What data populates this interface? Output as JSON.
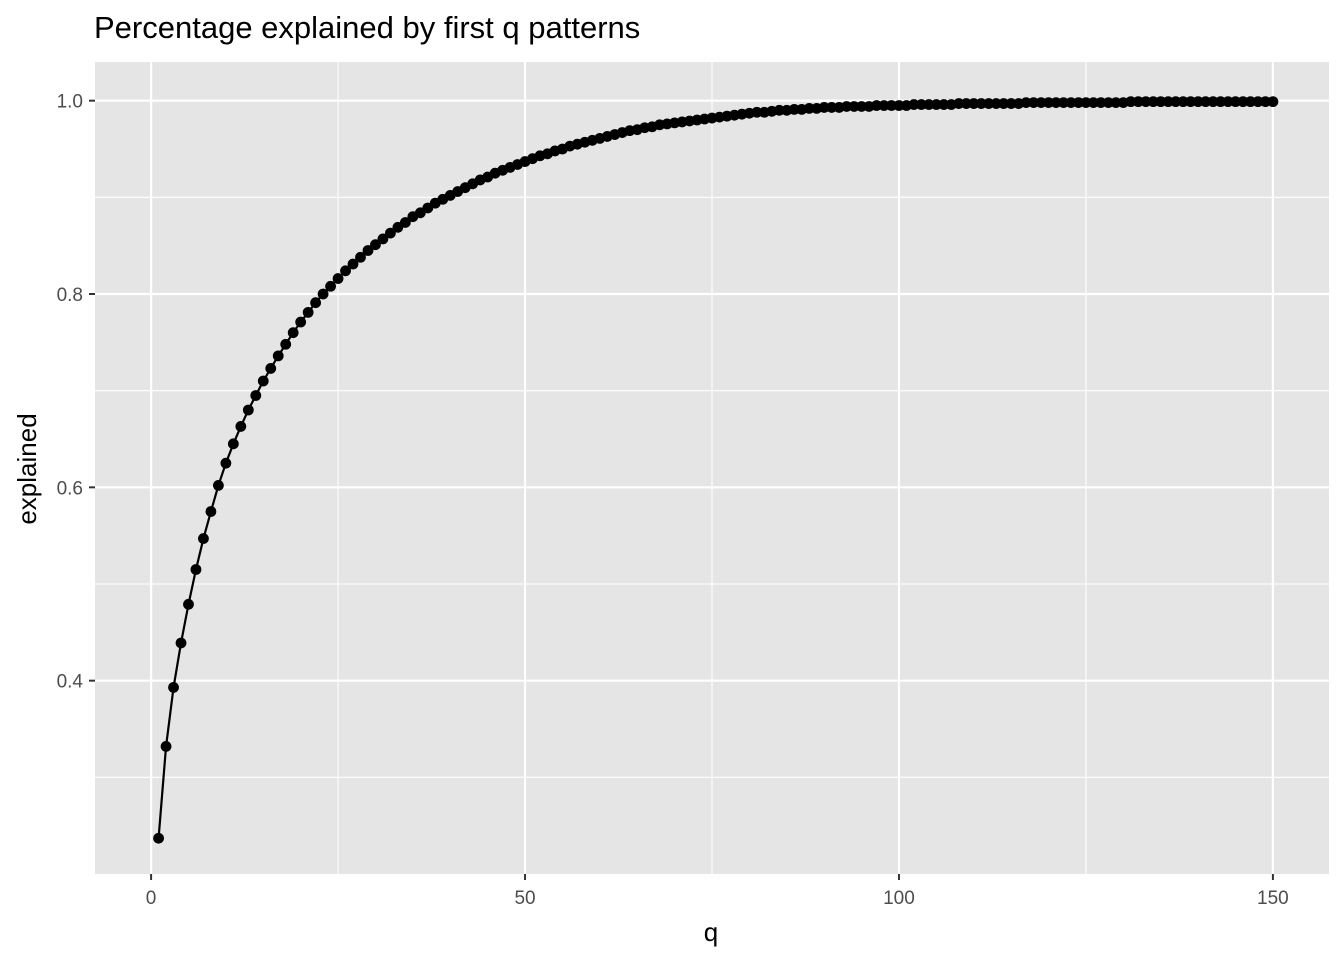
{
  "chart_data": {
    "type": "line",
    "title": "Percentage explained by first q patterns",
    "xlabel": "q",
    "ylabel": "explained",
    "xlim": [
      -7.5,
      157.5
    ],
    "ylim": [
      0.2,
      1.04
    ],
    "x_ticks": [
      0,
      50,
      100,
      150
    ],
    "x_tick_labels": [
      "0",
      "50",
      "100",
      "150"
    ],
    "y_ticks": [
      0.4,
      0.6,
      0.8,
      1.0
    ],
    "y_tick_labels": [
      "0.4",
      "0.6",
      "0.8",
      "1.0"
    ],
    "grid": true,
    "legend": "none",
    "markers": "points",
    "colors": {
      "panel": "#e5e5e5",
      "grid": "#ffffff",
      "series": "#000000",
      "tick_text": "#4d4d4d",
      "tick_mark": "#333333"
    },
    "x": [
      1,
      2,
      3,
      4,
      5,
      6,
      7,
      8,
      9,
      10,
      11,
      12,
      13,
      14,
      15,
      16,
      17,
      18,
      19,
      20,
      21,
      22,
      23,
      24,
      25,
      26,
      27,
      28,
      29,
      30,
      31,
      32,
      33,
      34,
      35,
      36,
      37,
      38,
      39,
      40,
      41,
      42,
      43,
      44,
      45,
      46,
      47,
      48,
      49,
      50,
      51,
      52,
      53,
      54,
      55,
      56,
      57,
      58,
      59,
      60,
      61,
      62,
      63,
      64,
      65,
      66,
      67,
      68,
      69,
      70,
      71,
      72,
      73,
      74,
      75,
      76,
      77,
      78,
      79,
      80,
      81,
      82,
      83,
      84,
      85,
      86,
      87,
      88,
      89,
      90,
      91,
      92,
      93,
      94,
      95,
      96,
      97,
      98,
      99,
      100,
      101,
      102,
      103,
      104,
      105,
      106,
      107,
      108,
      109,
      110,
      111,
      112,
      113,
      114,
      115,
      116,
      117,
      118,
      119,
      120,
      121,
      122,
      123,
      124,
      125,
      126,
      127,
      128,
      129,
      130,
      131,
      132,
      133,
      134,
      135,
      136,
      137,
      138,
      139,
      140,
      141,
      142,
      143,
      144,
      145,
      146,
      147,
      148,
      149,
      150
    ],
    "y": [
      0.237,
      0.332,
      0.393,
      0.439,
      0.479,
      0.515,
      0.547,
      0.575,
      0.602,
      0.625,
      0.645,
      0.663,
      0.68,
      0.695,
      0.71,
      0.723,
      0.736,
      0.748,
      0.76,
      0.771,
      0.781,
      0.791,
      0.8,
      0.808,
      0.816,
      0.824,
      0.831,
      0.838,
      0.845,
      0.851,
      0.857,
      0.863,
      0.869,
      0.874,
      0.88,
      0.884,
      0.889,
      0.894,
      0.898,
      0.902,
      0.906,
      0.91,
      0.914,
      0.918,
      0.921,
      0.925,
      0.928,
      0.931,
      0.934,
      0.937,
      0.94,
      0.943,
      0.945,
      0.948,
      0.95,
      0.953,
      0.955,
      0.957,
      0.959,
      0.961,
      0.963,
      0.965,
      0.967,
      0.969,
      0.97,
      0.972,
      0.973,
      0.975,
      0.976,
      0.977,
      0.978,
      0.979,
      0.98,
      0.981,
      0.982,
      0.983,
      0.984,
      0.985,
      0.986,
      0.987,
      0.988,
      0.988,
      0.989,
      0.99,
      0.99,
      0.991,
      0.991,
      0.992,
      0.992,
      0.993,
      0.993,
      0.993,
      0.994,
      0.994,
      0.994,
      0.994,
      0.995,
      0.995,
      0.995,
      0.995,
      0.995,
      0.996,
      0.996,
      0.996,
      0.996,
      0.996,
      0.996,
      0.997,
      0.997,
      0.997,
      0.997,
      0.997,
      0.997,
      0.997,
      0.997,
      0.997,
      0.998,
      0.998,
      0.998,
      0.998,
      0.998,
      0.998,
      0.998,
      0.998,
      0.998,
      0.998,
      0.998,
      0.998,
      0.998,
      0.998,
      0.999,
      0.999,
      0.999,
      0.999,
      0.999,
      0.999,
      0.999,
      0.999,
      0.999,
      0.999,
      0.999,
      0.999,
      0.999,
      0.999,
      0.999,
      0.999,
      0.999,
      0.999,
      0.999,
      0.999
    ]
  }
}
